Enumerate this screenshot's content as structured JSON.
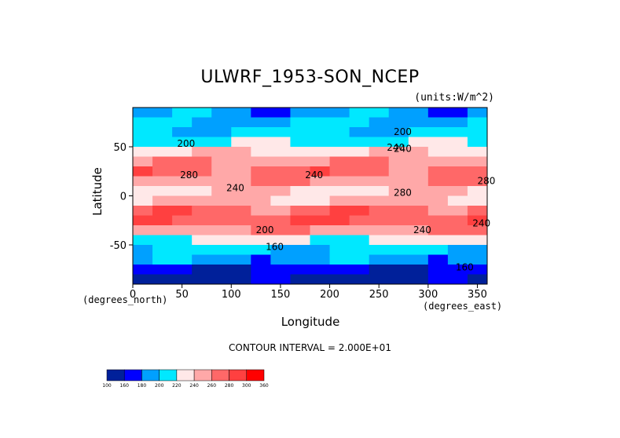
{
  "chart_data": {
    "type": "heatmap",
    "title": "ULWRF_1953-SON_NCEP",
    "units": "(units:W/m^2)",
    "xlabel": "Longitude",
    "ylabel": "Latitude",
    "x_unit": "(degrees_north)",
    "x_unit2": "(degrees_east)",
    "xlim": [
      0,
      360
    ],
    "ylim": [
      -90,
      90
    ],
    "x_ticks": [
      "0",
      "50",
      "100",
      "150",
      "200",
      "250",
      "300",
      "350"
    ],
    "x_tick_values": [
      0,
      50,
      100,
      150,
      200,
      250,
      300,
      350
    ],
    "y_ticks": [
      "50",
      "0",
      "-50"
    ],
    "y_tick_values": [
      50,
      0,
      -50
    ],
    "contour_labels": [
      "200",
      "240",
      "280",
      "240",
      "240",
      "200",
      "160",
      "200",
      "240",
      "280",
      "240",
      "240",
      "160",
      "280"
    ],
    "contour_interval": "CONTOUR INTERVAL = 2.000E+01",
    "colorbar_labels": [
      "100",
      "160",
      "180",
      "200",
      "220",
      "240",
      "260",
      "280",
      "300",
      "360"
    ],
    "colorbar_colors": [
      "#00209a",
      "#0000ff",
      "#00a0ff",
      "#00e8ff",
      "#ffe8e8",
      "#ffa8a8",
      "#ff6868",
      "#ff4040",
      "#ff0000"
    ],
    "lat_band_values": [
      {
        "lat": 85,
        "value": 190
      },
      {
        "lat": 75,
        "value": 200
      },
      {
        "lat": 65,
        "value": 205
      },
      {
        "lat": 55,
        "value": 215
      },
      {
        "lat": 45,
        "value": 235
      },
      {
        "lat": 35,
        "value": 255
      },
      {
        "lat": 25,
        "value": 270
      },
      {
        "lat": 15,
        "value": 255
      },
      {
        "lat": 5,
        "value": 235
      },
      {
        "lat": -5,
        "value": 245
      },
      {
        "lat": -15,
        "value": 270
      },
      {
        "lat": -25,
        "value": 275
      },
      {
        "lat": -35,
        "value": 255
      },
      {
        "lat": -45,
        "value": 225
      },
      {
        "lat": -55,
        "value": 205
      },
      {
        "lat": -65,
        "value": 190
      },
      {
        "lat": -75,
        "value": 165
      },
      {
        "lat": -85,
        "value": 150
      }
    ]
  }
}
